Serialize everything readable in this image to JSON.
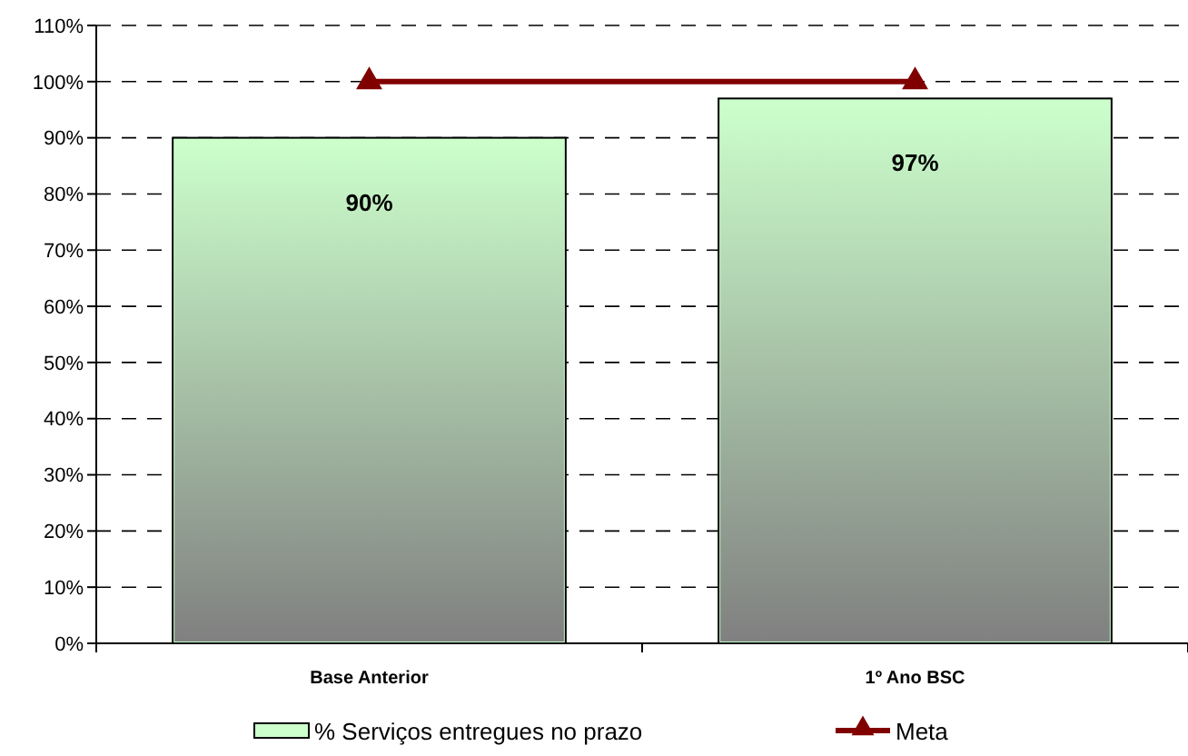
{
  "chart_data": {
    "type": "bar",
    "categories": [
      "Base Anterior",
      "1º Ano BSC"
    ],
    "series": [
      {
        "name": "% Serviços entregues no prazo",
        "color": "#ccffcc",
        "values": [
          90,
          97
        ],
        "value_labels": [
          "90%",
          "97%"
        ]
      },
      {
        "name": "Meta",
        "type": "line",
        "color": "#800000",
        "values": [
          100,
          100
        ],
        "marker": "triangle"
      }
    ],
    "ylim": [
      0,
      110
    ],
    "yticks": [
      {
        "value": 0,
        "label": "0%"
      },
      {
        "value": 10,
        "label": "10%"
      },
      {
        "value": 20,
        "label": "20%"
      },
      {
        "value": 30,
        "label": "30%"
      },
      {
        "value": 40,
        "label": "40%"
      },
      {
        "value": 50,
        "label": "50%"
      },
      {
        "value": 60,
        "label": "60%"
      },
      {
        "value": 70,
        "label": "70%"
      },
      {
        "value": 80,
        "label": "80%"
      },
      {
        "value": 90,
        "label": "90%"
      },
      {
        "value": 100,
        "label": "100%"
      },
      {
        "value": 110,
        "label": "110%"
      }
    ],
    "grid": "y",
    "legend": "bottom"
  }
}
